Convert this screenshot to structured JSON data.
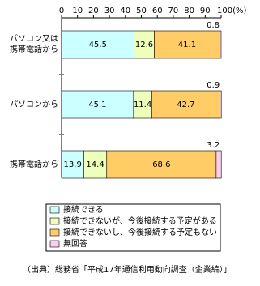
{
  "chart_data": {
    "type": "stacked-bar-horizontal",
    "categories": [
      "パソコン又は\n携帯電話から",
      "パソコンから",
      "携帯電話から"
    ],
    "series": [
      {
        "name": "接続できる",
        "color": "#ccffff",
        "values": [
          45.5,
          45.1,
          13.9
        ]
      },
      {
        "name": "接続できないが、今後接続する予定がある",
        "color": "#eeffbb",
        "values": [
          12.6,
          11.4,
          14.4
        ]
      },
      {
        "name": "接続できないし、今後接続する予定もない",
        "color": "#ffcc66",
        "values": [
          41.1,
          42.7,
          68.6
        ]
      },
      {
        "name": "無回答",
        "color": "#ffccee",
        "values": [
          0.8,
          0.9,
          3.2
        ]
      }
    ],
    "xlim": [
      0,
      100
    ],
    "xticks": [
      0,
      10,
      20,
      30,
      40,
      50,
      60,
      70,
      80,
      90,
      {
        "value": 100,
        "label": "100(%)"
      }
    ],
    "source": "（出典）総務省「平成17年通信利用動向調査（企業編）」"
  }
}
